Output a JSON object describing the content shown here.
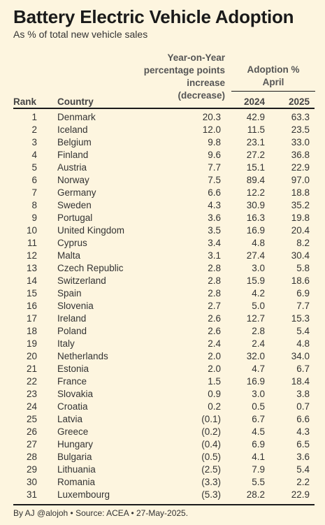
{
  "chart_data": {
    "type": "table",
    "title": "Battery Electric Vehicle Adoption",
    "subtitle": "As % of total new vehicle sales",
    "headers": {
      "rank": "Rank",
      "country": "Country",
      "yoy": [
        "Year-on-Year",
        "percentage points",
        "increase",
        "(decrease)"
      ],
      "adoption_group": [
        "Adoption %",
        "April"
      ],
      "y2024": "2024",
      "y2025": "2025"
    },
    "rows": [
      {
        "rank": "1",
        "country": "Denmark",
        "yoy": "20.3",
        "y2024": "42.9",
        "y2025": "63.3"
      },
      {
        "rank": "2",
        "country": "Iceland",
        "yoy": "12.0",
        "y2024": "11.5",
        "y2025": "23.5"
      },
      {
        "rank": "3",
        "country": "Belgium",
        "yoy": "9.8",
        "y2024": "23.1",
        "y2025": "33.0"
      },
      {
        "rank": "4",
        "country": "Finland",
        "yoy": "9.6",
        "y2024": "27.2",
        "y2025": "36.8"
      },
      {
        "rank": "5",
        "country": "Austria",
        "yoy": "7.7",
        "y2024": "15.1",
        "y2025": "22.9"
      },
      {
        "rank": "6",
        "country": "Norway",
        "yoy": "7.5",
        "y2024": "89.4",
        "y2025": "97.0"
      },
      {
        "rank": "7",
        "country": "Germany",
        "yoy": "6.6",
        "y2024": "12.2",
        "y2025": "18.8"
      },
      {
        "rank": "8",
        "country": "Sweden",
        "yoy": "4.3",
        "y2024": "30.9",
        "y2025": "35.2"
      },
      {
        "rank": "9",
        "country": "Portugal",
        "yoy": "3.6",
        "y2024": "16.3",
        "y2025": "19.8"
      },
      {
        "rank": "10",
        "country": "United Kingdom",
        "yoy": "3.5",
        "y2024": "16.9",
        "y2025": "20.4"
      },
      {
        "rank": "11",
        "country": "Cyprus",
        "yoy": "3.4",
        "y2024": "4.8",
        "y2025": "8.2"
      },
      {
        "rank": "12",
        "country": "Malta",
        "yoy": "3.1",
        "y2024": "27.4",
        "y2025": "30.4"
      },
      {
        "rank": "13",
        "country": "Czech Republic",
        "yoy": "2.8",
        "y2024": "3.0",
        "y2025": "5.8"
      },
      {
        "rank": "14",
        "country": "Switzerland",
        "yoy": "2.8",
        "y2024": "15.9",
        "y2025": "18.6"
      },
      {
        "rank": "15",
        "country": "Spain",
        "yoy": "2.8",
        "y2024": "4.2",
        "y2025": "6.9"
      },
      {
        "rank": "16",
        "country": "Slovenia",
        "yoy": "2.7",
        "y2024": "5.0",
        "y2025": "7.7"
      },
      {
        "rank": "17",
        "country": "Ireland",
        "yoy": "2.6",
        "y2024": "12.7",
        "y2025": "15.3"
      },
      {
        "rank": "18",
        "country": "Poland",
        "yoy": "2.6",
        "y2024": "2.8",
        "y2025": "5.4"
      },
      {
        "rank": "19",
        "country": "Italy",
        "yoy": "2.4",
        "y2024": "2.4",
        "y2025": "4.8"
      },
      {
        "rank": "20",
        "country": "Netherlands",
        "yoy": "2.0",
        "y2024": "32.0",
        "y2025": "34.0"
      },
      {
        "rank": "21",
        "country": "Estonia",
        "yoy": "2.0",
        "y2024": "4.7",
        "y2025": "6.7"
      },
      {
        "rank": "22",
        "country": "France",
        "yoy": "1.5",
        "y2024": "16.9",
        "y2025": "18.4"
      },
      {
        "rank": "23",
        "country": "Slovakia",
        "yoy": "0.9",
        "y2024": "3.0",
        "y2025": "3.8"
      },
      {
        "rank": "24",
        "country": "Croatia",
        "yoy": "0.2",
        "y2024": "0.5",
        "y2025": "0.7"
      },
      {
        "rank": "25",
        "country": "Latvia",
        "yoy": "(0.1)",
        "y2024": "6.7",
        "y2025": "6.6"
      },
      {
        "rank": "26",
        "country": "Greece",
        "yoy": "(0.2)",
        "y2024": "4.5",
        "y2025": "4.3"
      },
      {
        "rank": "27",
        "country": "Hungary",
        "yoy": "(0.4)",
        "y2024": "6.9",
        "y2025": "6.5"
      },
      {
        "rank": "28",
        "country": "Bulgaria",
        "yoy": "(0.5)",
        "y2024": "4.1",
        "y2025": "3.6"
      },
      {
        "rank": "29",
        "country": "Lithuania",
        "yoy": "(2.5)",
        "y2024": "7.9",
        "y2025": "5.4"
      },
      {
        "rank": "30",
        "country": "Romania",
        "yoy": "(3.3)",
        "y2024": "5.5",
        "y2025": "2.2"
      },
      {
        "rank": "31",
        "country": "Luxembourg",
        "yoy": "(5.3)",
        "y2024": "28.2",
        "y2025": "22.9"
      }
    ],
    "footer": "By AJ @alojoh • Source: ACEA • 27-May-2025."
  },
  "colors": {
    "background": "#fdf5df",
    "text": "#1a1a1a",
    "header_text": "#555555"
  }
}
